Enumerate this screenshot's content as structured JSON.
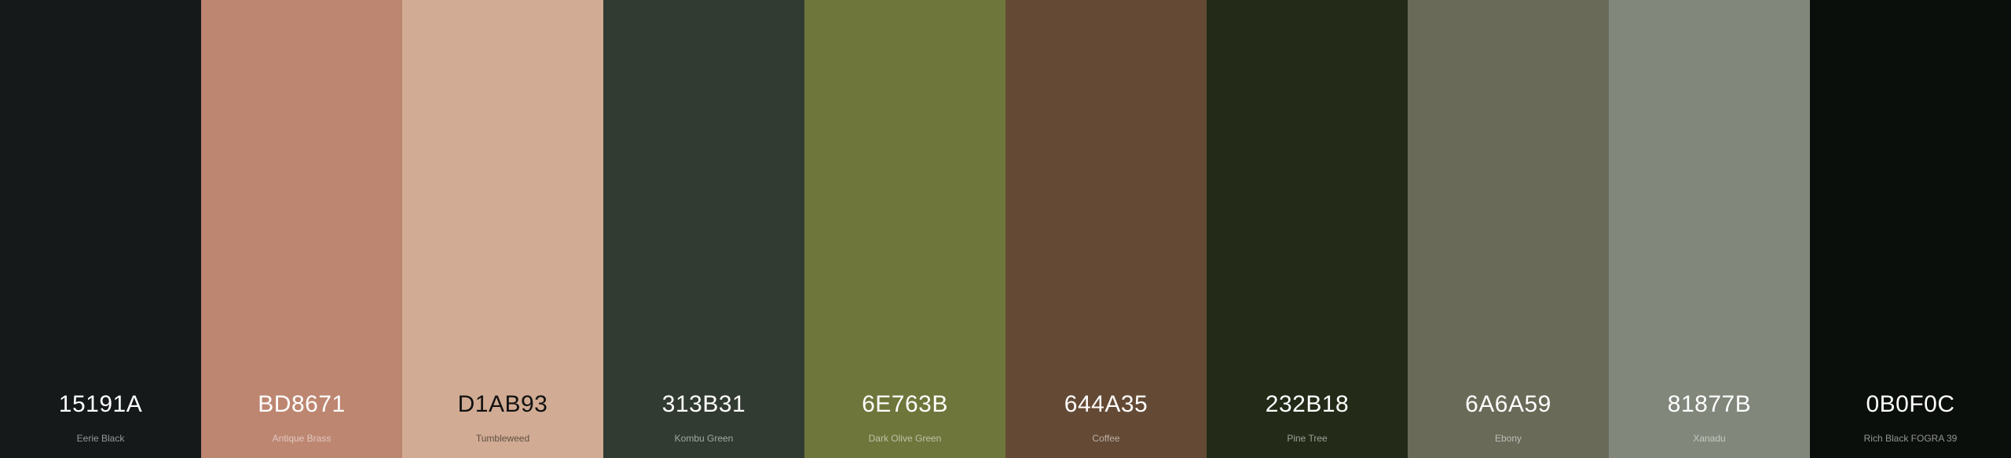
{
  "palette": {
    "colors": [
      {
        "hex": "15191A",
        "name": "Eerie Black",
        "color": "#15191A",
        "text_tone": "light"
      },
      {
        "hex": "BD8671",
        "name": "Antique Brass",
        "color": "#BD8671",
        "text_tone": "light"
      },
      {
        "hex": "D1AB93",
        "name": "Tumbleweed",
        "color": "#D1AB93",
        "text_tone": "dark"
      },
      {
        "hex": "313B31",
        "name": "Kombu Green",
        "color": "#313B31",
        "text_tone": "light"
      },
      {
        "hex": "6E763B",
        "name": "Dark Olive Green",
        "color": "#6E763B",
        "text_tone": "light"
      },
      {
        "hex": "644A35",
        "name": "Coffee",
        "color": "#644A35",
        "text_tone": "light"
      },
      {
        "hex": "232B18",
        "name": "Pine Tree",
        "color": "#232B18",
        "text_tone": "light"
      },
      {
        "hex": "6A6A59",
        "name": "Ebony",
        "color": "#6A6A59",
        "text_tone": "light"
      },
      {
        "hex": "81877B",
        "name": "Xanadu",
        "color": "#81877B",
        "text_tone": "light"
      },
      {
        "hex": "0B0F0C",
        "name": "Rich Black FOGRA 39",
        "color": "#0B0F0C",
        "text_tone": "light"
      }
    ]
  }
}
